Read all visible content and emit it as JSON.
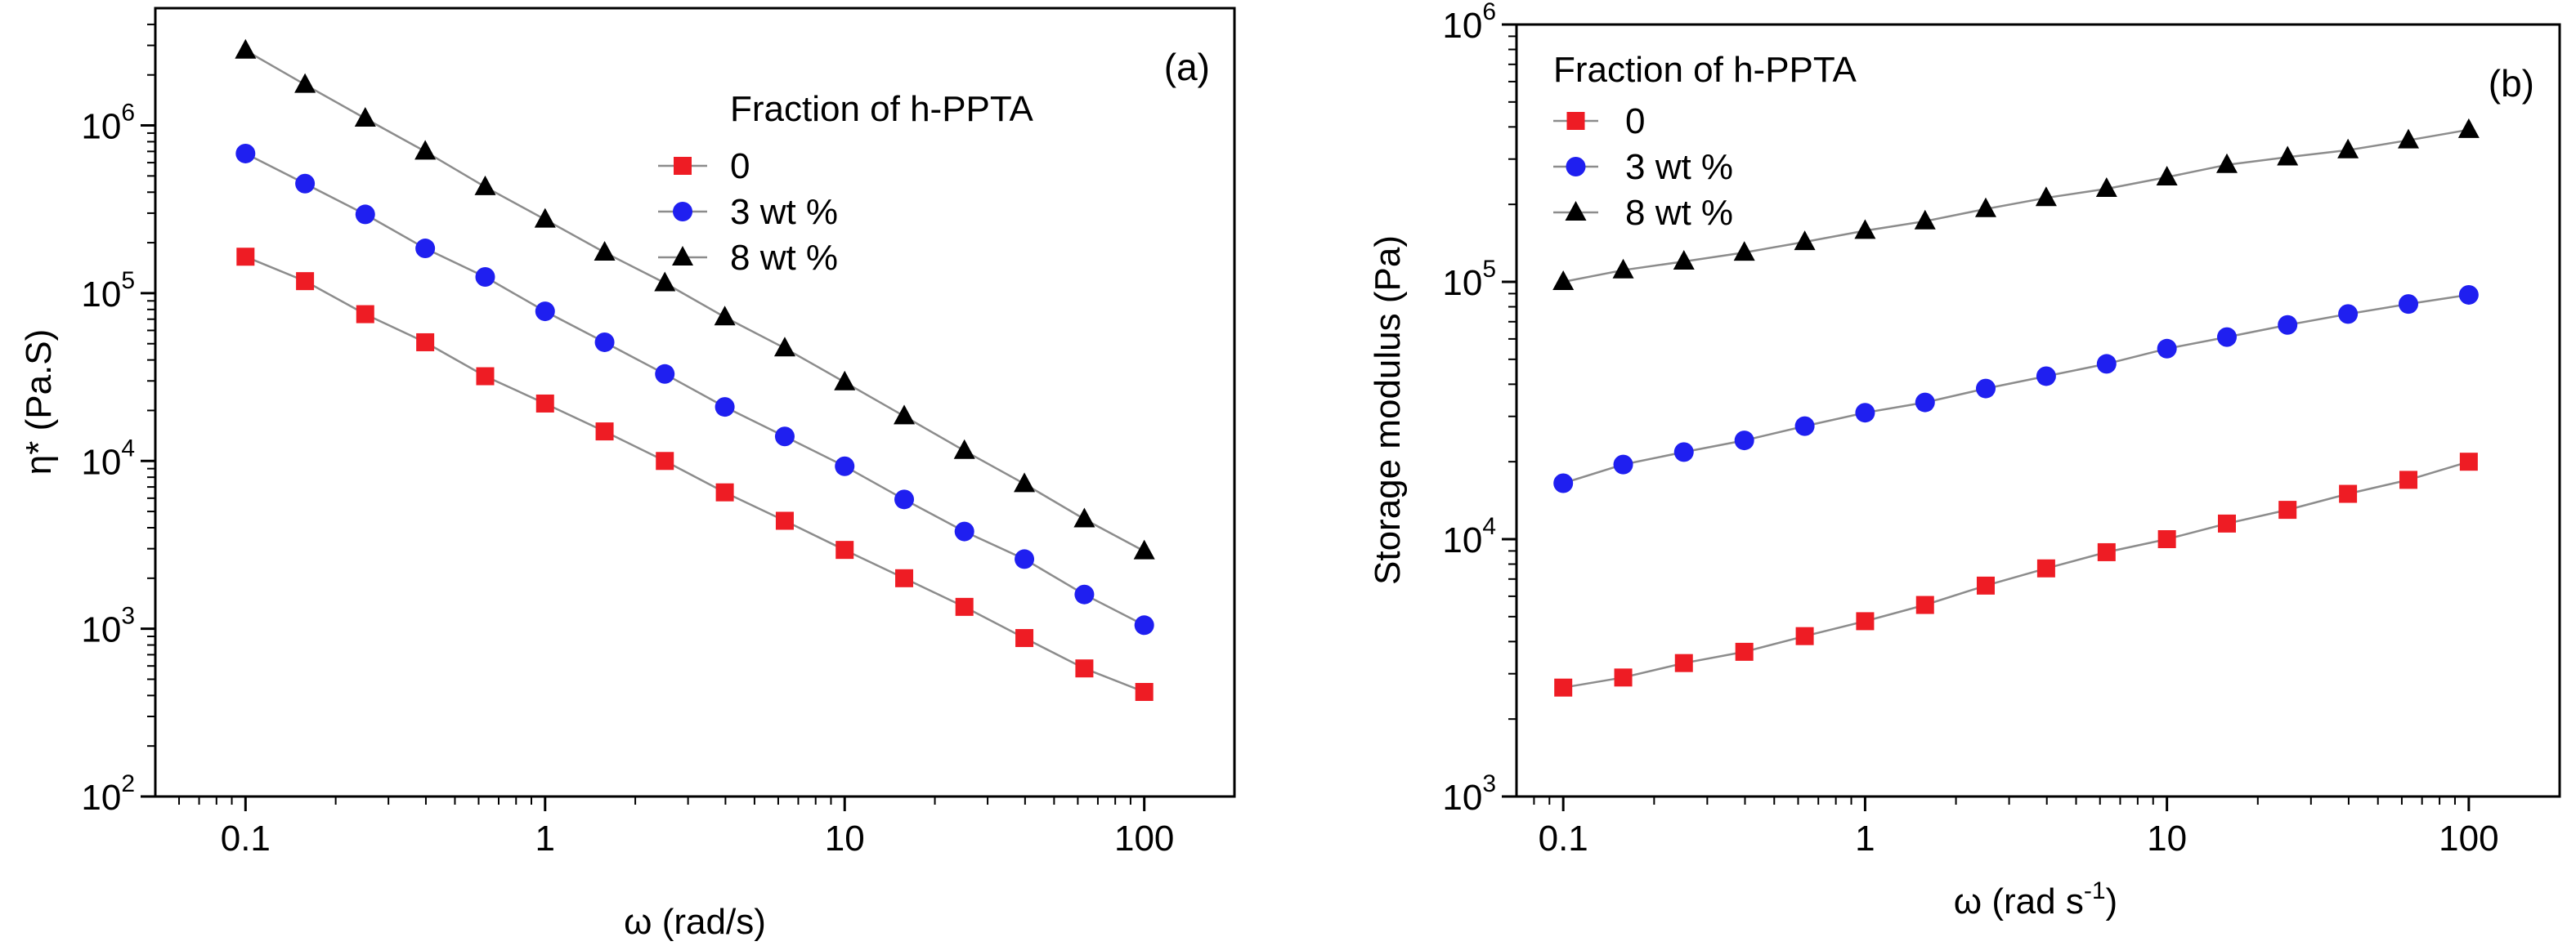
{
  "chart_data": [
    {
      "type": "scatter",
      "panel_label": "(a)",
      "xlabel": "ω (rad/s)",
      "ylabel": "η* (Pa.S)",
      "xscale": "log",
      "yscale": "log",
      "xlim": [
        0.05,
        200
      ],
      "ylim": [
        100,
        5000000
      ],
      "x_ticks": [
        {
          "v": 0.1,
          "label": "0.1"
        },
        {
          "v": 1,
          "label": "1"
        },
        {
          "v": 10,
          "label": "10"
        },
        {
          "v": 100,
          "label": "100"
        }
      ],
      "y_ticks": [
        {
          "v": 100,
          "base": "10",
          "exp": "2"
        },
        {
          "v": 1000,
          "base": "10",
          "exp": "3"
        },
        {
          "v": 10000,
          "base": "10",
          "exp": "4"
        },
        {
          "v": 100000,
          "base": "10",
          "exp": "5"
        },
        {
          "v": 1000000,
          "base": "10",
          "exp": "6"
        }
      ],
      "legend_title": "Fraction of h-PPTA",
      "legend_position": "upper-right",
      "x": [
        0.1,
        0.158,
        0.251,
        0.398,
        0.631,
        1,
        1.58,
        2.51,
        3.98,
        6.31,
        10,
        15.8,
        25.1,
        39.8,
        63.1,
        100
      ],
      "series": [
        {
          "name": "0",
          "marker": "square",
          "color": "#ee1c24",
          "values": [
            165000,
            118000,
            75000,
            51000,
            32000,
            22000,
            15000,
            10000,
            6500,
            4400,
            2950,
            2000,
            1350,
            880,
            580,
            420
          ]
        },
        {
          "name": "3 wt %",
          "marker": "circle",
          "color": "#1f1ff0",
          "values": [
            680000,
            450000,
            295000,
            185000,
            125000,
            78000,
            51000,
            33000,
            21000,
            14000,
            9300,
            5900,
            3800,
            2600,
            1600,
            1050
          ]
        },
        {
          "name": "8 wt %",
          "marker": "triangle",
          "color": "#000000",
          "values": [
            2800000,
            1750000,
            1100000,
            700000,
            430000,
            275000,
            175000,
            115000,
            72000,
            47000,
            29500,
            18500,
            11500,
            7300,
            4500,
            2900
          ]
        }
      ]
    },
    {
      "type": "scatter",
      "panel_label": "(b)",
      "xlabel": "ω (rad s",
      "xlabel_sup": "-1",
      "xlabel_end": ")",
      "ylabel": "Storage modulus (Pa)",
      "xscale": "log",
      "yscale": "log",
      "xlim": [
        0.07,
        200
      ],
      "ylim": [
        1000,
        1000000
      ],
      "x_ticks": [
        {
          "v": 0.1,
          "label": "0.1"
        },
        {
          "v": 1,
          "label": "1"
        },
        {
          "v": 10,
          "label": "10"
        },
        {
          "v": 100,
          "label": "100"
        }
      ],
      "y_ticks": [
        {
          "v": 1000,
          "base": "10",
          "exp": "3"
        },
        {
          "v": 10000,
          "base": "10",
          "exp": "4"
        },
        {
          "v": 100000,
          "base": "10",
          "exp": "5"
        },
        {
          "v": 1000000,
          "base": "10",
          "exp": "6"
        }
      ],
      "legend_title": "Fraction of h-PPTA",
      "legend_position": "upper-left",
      "x": [
        0.1,
        0.158,
        0.251,
        0.398,
        0.631,
        1,
        1.58,
        2.51,
        3.98,
        6.31,
        10,
        15.8,
        25.1,
        39.8,
        63.1,
        100
      ],
      "series": [
        {
          "name": "0",
          "marker": "square",
          "color": "#ee1c24",
          "values": [
            2650,
            2900,
            3300,
            3650,
            4200,
            4800,
            5550,
            6600,
            7700,
            8900,
            10000,
            11500,
            13000,
            15000,
            17000,
            20000
          ]
        },
        {
          "name": "3 wt %",
          "marker": "circle",
          "color": "#1f1ff0",
          "values": [
            16500,
            19500,
            21800,
            24200,
            27500,
            31000,
            34000,
            38500,
            43000,
            48000,
            55000,
            61000,
            68000,
            75000,
            82000,
            89000
          ]
        },
        {
          "name": "8 wt %",
          "marker": "triangle",
          "color": "#000000",
          "values": [
            100000,
            111000,
            120000,
            130000,
            143000,
            158000,
            172000,
            192000,
            212000,
            230000,
            255000,
            285000,
            305000,
            325000,
            355000,
            390000
          ]
        }
      ]
    }
  ]
}
